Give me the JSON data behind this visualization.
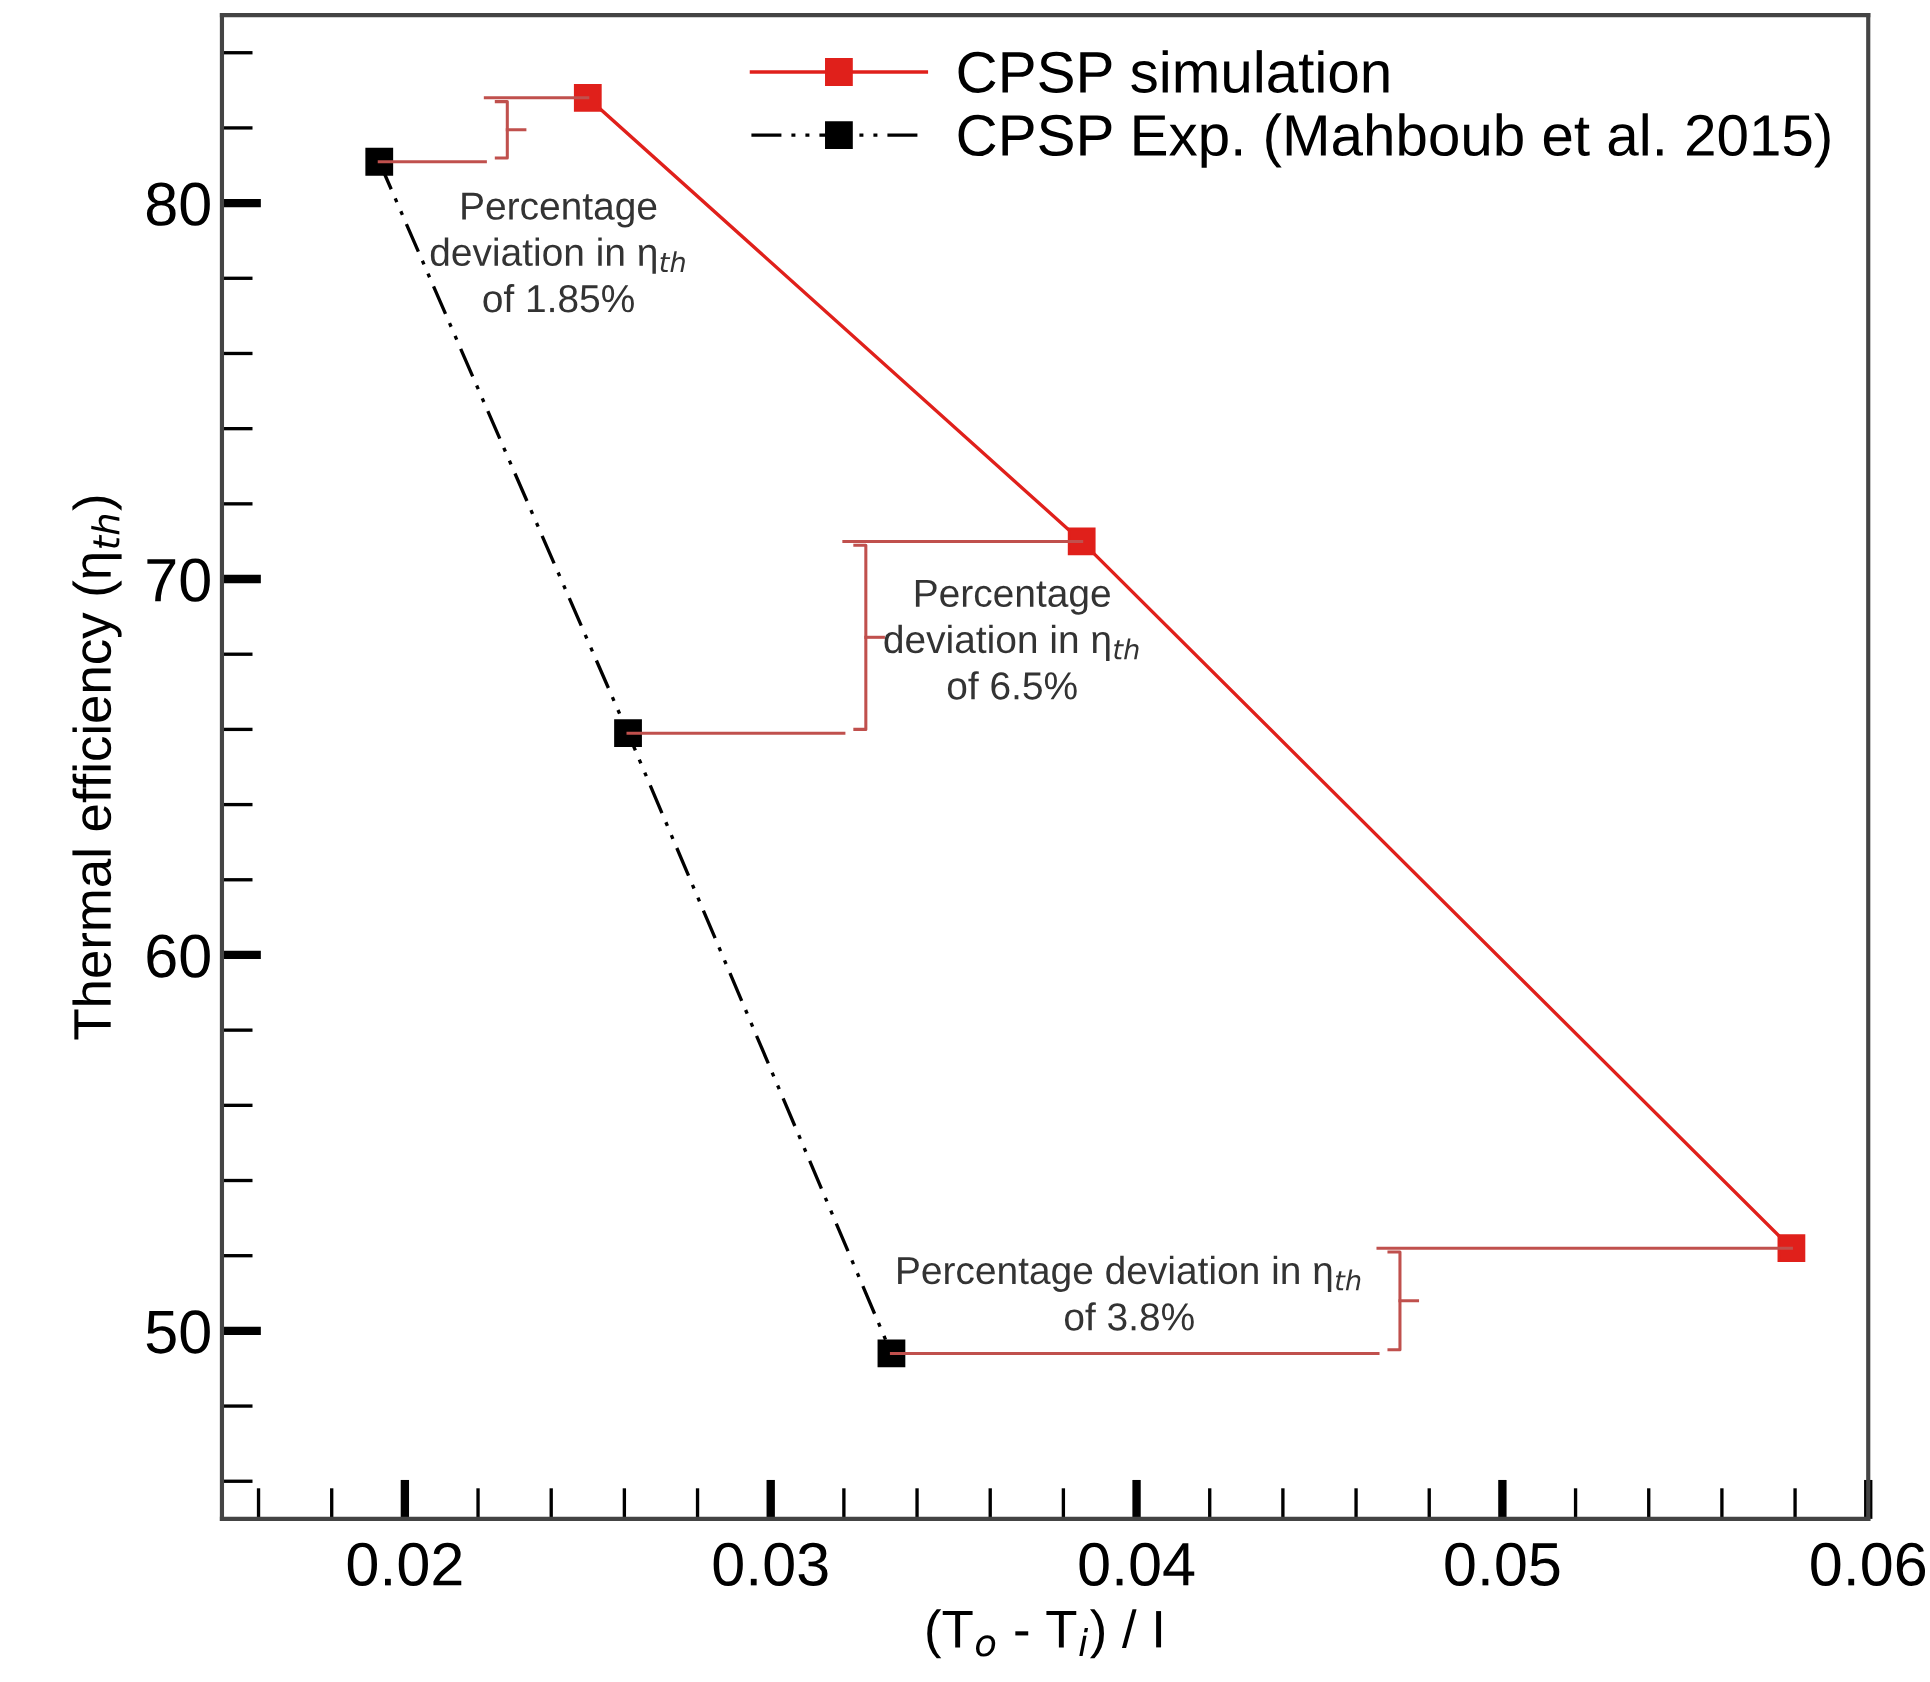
{
  "chart_data": {
    "type": "line",
    "xlabel": "(T$_{o}$ - T$_{i}$) / I",
    "ylabel": "Thermal efficiency (η$_{th}$)",
    "series": [
      {
        "name": "CPSP simulation",
        "color": "#e0201b",
        "x": [
          0.025,
          0.0385,
          0.0579
        ],
        "values": [
          82.8,
          71.0,
          52.2
        ],
        "marker": "square",
        "line_style": "solid"
      },
      {
        "name": "CPSP Exp. (Mahboub et al. 2015)",
        "color": "#000000",
        "x": [
          0.0193,
          0.0261,
          0.0333
        ],
        "values": [
          81.1,
          65.9,
          49.4
        ],
        "marker": "square",
        "line_style": "dashdotdot"
      }
    ],
    "annotations": [
      {
        "text": "Percentage\ndeviation in η$_{th}$\nof 1.85%",
        "x": 0.0193,
        "y": 81.1
      },
      "Percentage\ndeviation in η$_{th}$\nof 6.5%",
      "Percentage deviation in η$_{th}$\nof 3.8%"
    ],
    "xlim": [
      0.015,
      0.06
    ],
    "xticks": [
      {
        "value": 0.016,
        "label": null
      },
      {
        "value": 0.018,
        "label": null
      },
      {
        "value": 0.02,
        "label": "0.02"
      },
      {
        "value": 0.022,
        "label": null
      },
      {
        "value": 0.024,
        "label": null
      },
      {
        "value": 0.026,
        "label": null
      },
      {
        "value": 0.028,
        "label": null
      },
      {
        "value": 0.03,
        "label": "0.03"
      },
      {
        "value": 0.032,
        "label": null
      },
      {
        "value": 0.034,
        "label": null
      },
      {
        "value": 0.036,
        "label": null
      },
      {
        "value": 0.038,
        "label": null
      },
      {
        "value": 0.04,
        "label": "0.04"
      },
      {
        "value": 0.042,
        "label": null
      },
      {
        "value": 0.044,
        "label": null
      },
      {
        "value": 0.046,
        "label": null
      },
      {
        "value": 0.048,
        "label": null
      },
      {
        "value": 0.05,
        "label": "0.05"
      },
      {
        "value": 0.052,
        "label": null
      },
      {
        "value": 0.054,
        "label": null
      },
      {
        "value": 0.056,
        "label": null
      },
      {
        "value": 0.058,
        "label": null
      },
      {
        "value": 0.06,
        "label": "0.06"
      }
    ],
    "ylim": [
      45,
      85
    ],
    "yticks": [
      {
        "value": 46,
        "label": null
      },
      {
        "value": 48,
        "label": null
      },
      50,
      {
        "value": 52,
        "label": null
      },
      {
        "value": 54,
        "label": null
      },
      {
        "value": 56,
        "label": null
      },
      {
        "value": 58,
        "label": null
      },
      60,
      {
        "value": 62,
        "label": null
      },
      {
        "value": 64,
        "label": null
      },
      {
        "value": 66,
        "label": null
      },
      {
        "value": 68,
        "label": null
      },
      70,
      {
        "value": 72,
        "label": null
      },
      {
        "value": 74,
        "label": null
      },
      {
        "value": 76,
        "label": null
      },
      {
        "value": 78,
        "label": null
      },
      80,
      {
        "value": 82,
        "label": null
      },
      {
        "value": 84,
        "label": null
      }
    ],
    "grid": false,
    "legend": "top right"
  }
}
